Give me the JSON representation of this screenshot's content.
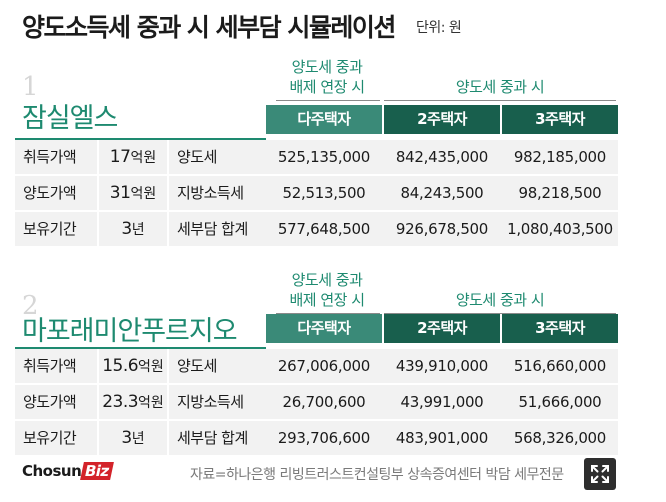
{
  "title": "양도소득세 중과 시 세부담 시뮬레이션",
  "unit": "단위: 원",
  "col_headers": {
    "sub_line1": "양도세 중과",
    "sub_line2": "배제 연장 시",
    "group": "양도세 중과 시",
    "c1": "다주택자",
    "c2": "2주택자",
    "c3": "3주택자"
  },
  "sections": [
    {
      "number": "1",
      "name": "잠실엘스",
      "rows": [
        {
          "label": "취득가액",
          "value_num": "17",
          "value_unit": "억원",
          "kind": "양도세",
          "v1": "525,135,000",
          "v2": "842,435,000",
          "v3": "982,185,000"
        },
        {
          "label": "양도가액",
          "value_num": "31",
          "value_unit": "억원",
          "kind": "지방소득세",
          "v1": "52,513,500",
          "v2": "84,243,500",
          "v3": "98,218,500"
        },
        {
          "label": "보유기간",
          "value_num": "3",
          "value_unit": "년",
          "kind": "세부담 합계",
          "v1": "577,648,500",
          "v2": "926,678,500",
          "v3": "1,080,403,500"
        }
      ]
    },
    {
      "number": "2",
      "name": "마포래미안푸르지오",
      "rows": [
        {
          "label": "취득가액",
          "value_num": "15.6",
          "value_unit": "억원",
          "kind": "양도세",
          "v1": "267,006,000",
          "v2": "439,910,000",
          "v3": "516,660,000"
        },
        {
          "label": "양도가액",
          "value_num": "23.3",
          "value_unit": "억원",
          "kind": "지방소득세",
          "v1": "26,700,600",
          "v2": "43,991,000",
          "v3": "51,666,000"
        },
        {
          "label": "보유기간",
          "value_num": "3",
          "value_unit": "년",
          "kind": "세부담 합계",
          "v1": "293,706,600",
          "v2": "483,901,000",
          "v3": "568,326,000"
        }
      ]
    }
  ],
  "footer": {
    "logo_main": "Chosun",
    "logo_accent": "Biz",
    "source": "자료=하나은행 리빙트러스트컨설팅부 상속증여센터 박담 세무전문"
  },
  "icons": {
    "expand": "expand-icon"
  },
  "colors": {
    "accent": "#1e8a70",
    "header_dark": "#185f4d",
    "header_light": "#3a8a78",
    "logo_red": "#d3232a"
  }
}
